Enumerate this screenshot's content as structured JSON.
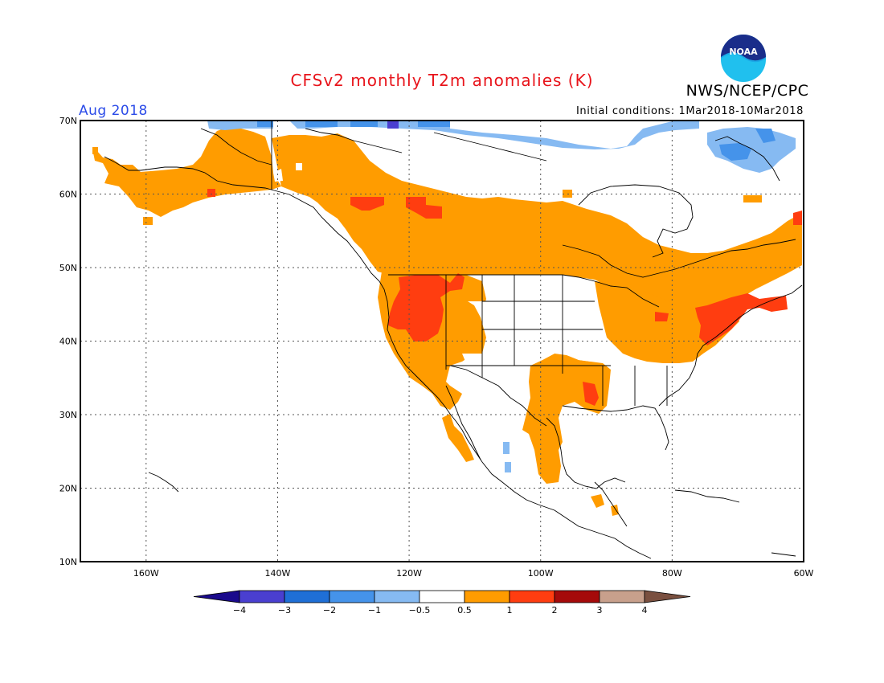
{
  "title": "CFSv2 monthly T2m anomalies (K)",
  "agency": "NWS/NCEP/CPC",
  "logo_text": "NOAA",
  "valid_month": "Aug 2018",
  "initial_conditions": "Initial conditions: 1Mar2018-10Mar2018",
  "map": {
    "lon_range": [
      -170,
      -60
    ],
    "lat_range": [
      10,
      70
    ],
    "lat_labels": [
      "70N",
      "60N",
      "50N",
      "40N",
      "30N",
      "20N",
      "10N"
    ],
    "lat_values": [
      70,
      60,
      50,
      40,
      30,
      20,
      10
    ],
    "lon_labels": [
      "160W",
      "140W",
      "120W",
      "100W",
      "80W",
      "60W"
    ],
    "lon_values": [
      -160,
      -140,
      -120,
      -100,
      -80,
      -60
    ],
    "gridlines": "dotted"
  },
  "colorbar": {
    "tick_labels": [
      "−4",
      "−3",
      "−2",
      "−1",
      "−0.5",
      "0.5",
      "1",
      "2",
      "3",
      "4"
    ],
    "colors": [
      "#1a0a8c",
      "#4a3fd0",
      "#1f6fd6",
      "#4593ea",
      "#86baf2",
      "#ffffff",
      "#ff9c00",
      "#ff3d10",
      "#a50a0a",
      "#c8a08c",
      "#7a5040"
    ]
  },
  "legend_colors": {
    "cold_light": "#86baf2",
    "cold_mid": "#4593ea",
    "cold_strong": "#1f6fd6",
    "cold_extreme": "#4a3fd0",
    "warm_light": "#ff9c00",
    "warm_mid": "#ff3d10"
  }
}
